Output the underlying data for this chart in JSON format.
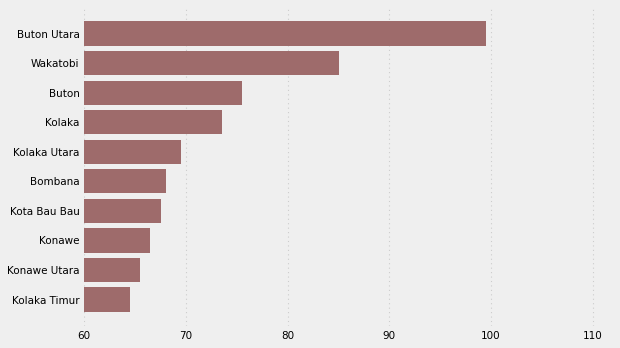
{
  "categories": [
    "Kolaka Timur",
    "Konawe Utara",
    "Konawe",
    "Kota Bau Bau",
    "Bombana",
    "Kolaka Utara",
    "Kolaka",
    "Buton",
    "Wakatobi",
    "Buton Utara"
  ],
  "values": [
    64.5,
    65.5,
    66.5,
    67.5,
    68.0,
    69.5,
    73.5,
    75.5,
    85.0,
    99.5
  ],
  "bar_color": "#9e6b6b",
  "background_color": "#efefef",
  "xlim": [
    60,
    112
  ],
  "xticks": [
    60,
    70,
    80,
    90,
    100,
    110
  ],
  "bar_height": 0.82,
  "grid_color": "#cccccc",
  "label_fontsize": 7.5,
  "tick_fontsize": 7.5
}
